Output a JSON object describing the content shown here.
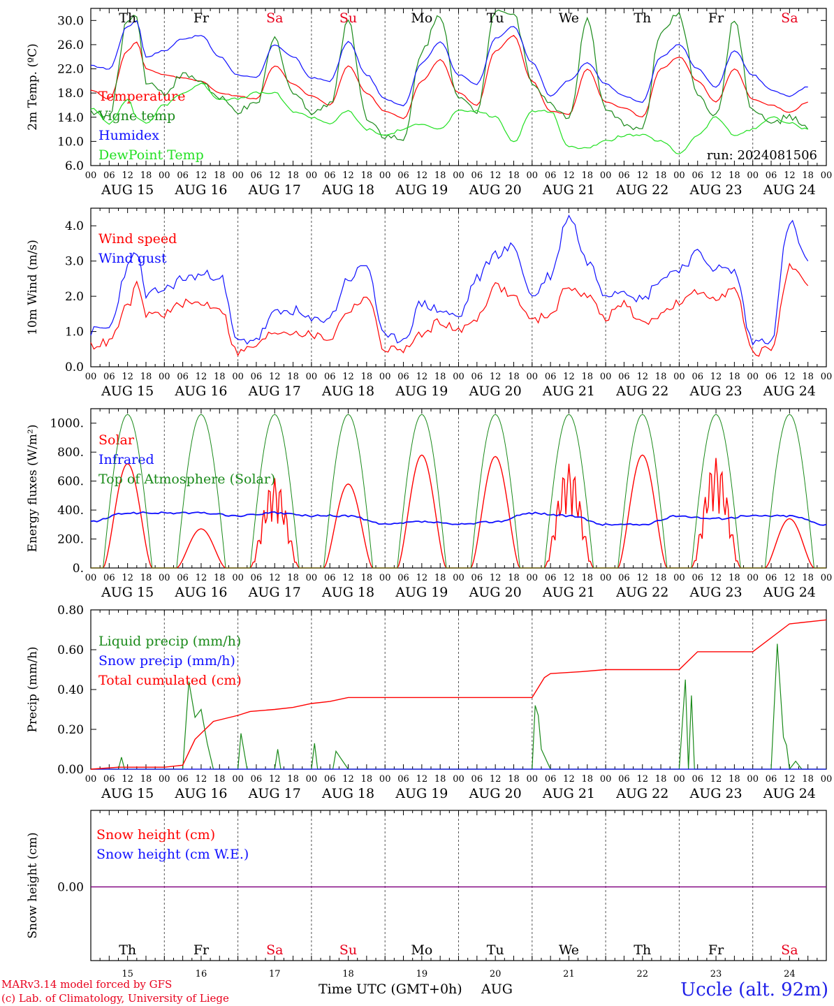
{
  "colors": {
    "red": "#ff0000",
    "dark_green": "#1a8a1a",
    "blue": "#1010ff",
    "light_green": "#22e022",
    "purple": "#800080",
    "weekend": "#e8001c"
  },
  "days": [
    {
      "abbr": "Th",
      "num": "15",
      "label": "AUG 15",
      "weekend": false
    },
    {
      "abbr": "Fr",
      "num": "16",
      "label": "AUG 16",
      "weekend": false
    },
    {
      "abbr": "Sa",
      "num": "17",
      "label": "AUG 17",
      "weekend": true
    },
    {
      "abbr": "Su",
      "num": "18",
      "label": "AUG 18",
      "weekend": true
    },
    {
      "abbr": "Mo",
      "num": "19",
      "label": "AUG 19",
      "weekend": false
    },
    {
      "abbr": "Tu",
      "num": "20",
      "label": "AUG 20",
      "weekend": false
    },
    {
      "abbr": "We",
      "num": "21",
      "label": "AUG 21",
      "weekend": false
    },
    {
      "abbr": "Th",
      "num": "22",
      "label": "AUG 22",
      "weekend": false
    },
    {
      "abbr": "Fr",
      "num": "23",
      "label": "AUG 23",
      "weekend": false
    },
    {
      "abbr": "Sa",
      "num": "24",
      "label": "AUG 24",
      "weekend": true
    }
  ],
  "hour_ticks": [
    "00",
    "06",
    "12",
    "18"
  ],
  "run_label": "run: 2024081506",
  "x_title": "Time UTC (GMT+0h)",
  "x_month": "AUG",
  "footer": {
    "model": "MARv3.14 model forced by GFS",
    "credit": "(c) Lab. of Climatology, University of Liege",
    "station": "Uccle (alt. 92m)"
  },
  "chart_data": [
    {
      "type": "line",
      "ylabel": "2m Temp. (ºC)",
      "ylim": [
        6,
        32
      ],
      "yticks": [
        "6.0",
        "10.0",
        "14.0",
        "18.0",
        "22.0",
        "26.0",
        "30.0"
      ],
      "ytick_values": [
        6,
        10,
        14,
        18,
        22,
        26,
        30
      ],
      "x_unit": "hours since AUG 15 00 UTC",
      "series": [
        {
          "name": "Temperature",
          "color": "red",
          "x": [
            0,
            6,
            12,
            15,
            18,
            24,
            30,
            36,
            42,
            48,
            54,
            60,
            66,
            72,
            78,
            84,
            90,
            96,
            102,
            108,
            114,
            120,
            126,
            132,
            138,
            144,
            150,
            156,
            162,
            168,
            174,
            180,
            186,
            192,
            198,
            204,
            210,
            216,
            222,
            228,
            234
          ],
          "values": [
            18.5,
            17,
            25,
            26.5,
            22,
            21,
            20.5,
            20,
            18,
            17.5,
            17,
            22.5,
            19.5,
            17.5,
            16,
            22.5,
            18,
            15,
            13.8,
            20,
            23.5,
            18,
            16,
            25,
            27.5,
            20,
            15,
            14.5,
            22,
            16.5,
            15.5,
            14,
            22,
            24,
            20,
            16.5,
            22,
            17,
            16,
            14.8,
            16.5
          ]
        },
        {
          "name": "Vigne temp",
          "color": "dark_green",
          "x": [
            0,
            6,
            12,
            15,
            18,
            24,
            30,
            36,
            42,
            48,
            54,
            60,
            66,
            72,
            78,
            84,
            90,
            96,
            102,
            108,
            114,
            120,
            126,
            132,
            138,
            144,
            150,
            156,
            162,
            168,
            174,
            180,
            186,
            192,
            198,
            204,
            210,
            216,
            222,
            228,
            234
          ],
          "values": [
            15,
            14,
            30,
            31,
            20,
            18,
            21,
            20,
            17,
            15,
            16,
            27,
            18,
            15,
            16,
            30,
            14,
            11,
            10,
            25,
            31,
            17,
            15,
            32,
            31,
            20,
            16,
            14,
            30,
            15,
            13,
            12,
            28,
            31,
            18,
            14,
            30,
            15,
            13,
            14,
            12
          ]
        },
        {
          "name": "Humidex",
          "color": "blue",
          "x": [
            0,
            6,
            12,
            15,
            18,
            24,
            30,
            36,
            42,
            48,
            54,
            60,
            66,
            72,
            78,
            84,
            90,
            96,
            102,
            108,
            114,
            120,
            126,
            132,
            138,
            144,
            150,
            156,
            162,
            168,
            174,
            180,
            186,
            192,
            198,
            204,
            210,
            216,
            222,
            228,
            234
          ],
          "values": [
            22.5,
            22,
            29,
            30,
            24,
            25,
            27,
            27.5,
            24,
            21,
            20.5,
            26,
            24,
            20.5,
            20,
            26.5,
            21,
            17,
            16,
            23,
            26.5,
            21,
            19.5,
            27,
            29,
            23,
            17.5,
            20,
            23,
            19.5,
            17.5,
            16.5,
            24,
            26,
            22,
            19,
            25,
            21,
            18.5,
            17.5,
            19
          ]
        },
        {
          "name": "DewPoint Temp",
          "color": "light_green",
          "x": [
            0,
            6,
            12,
            15,
            18,
            24,
            30,
            36,
            42,
            48,
            54,
            60,
            66,
            72,
            78,
            84,
            90,
            96,
            102,
            108,
            114,
            120,
            126,
            132,
            138,
            144,
            150,
            156,
            162,
            168,
            174,
            180,
            186,
            192,
            198,
            204,
            210,
            216,
            222,
            228,
            234
          ],
          "values": [
            15.5,
            13,
            17,
            14,
            13,
            16,
            18,
            19.5,
            17,
            17,
            18,
            18,
            15,
            14,
            13,
            15,
            12,
            11,
            12,
            13,
            12,
            15,
            15,
            14,
            10,
            15,
            15,
            9,
            9,
            10,
            11,
            11,
            10,
            8,
            11,
            14,
            11,
            12,
            14,
            13,
            12
          ]
        }
      ]
    },
    {
      "type": "line",
      "ylabel": "10m Wind (m/s)",
      "ylim": [
        0,
        4.5
      ],
      "yticks": [
        "0.0",
        "1.0",
        "2.0",
        "3.0",
        "4.0"
      ],
      "ytick_values": [
        0,
        1,
        2,
        3,
        4
      ],
      "x_unit": "hours since AUG 15 00 UTC",
      "series": [
        {
          "name": "Wind speed",
          "color": "red",
          "x": [
            0,
            6,
            12,
            15,
            18,
            24,
            30,
            36,
            42,
            48,
            54,
            60,
            66,
            72,
            78,
            84,
            90,
            96,
            102,
            108,
            114,
            120,
            126,
            132,
            138,
            144,
            150,
            156,
            162,
            168,
            174,
            180,
            186,
            192,
            198,
            204,
            210,
            216,
            222,
            228,
            234
          ],
          "values": [
            0.6,
            0.7,
            1.7,
            2.3,
            1.5,
            1.5,
            1.8,
            1.8,
            1.7,
            0.4,
            0.6,
            1.0,
            1.0,
            0.9,
            0.8,
            1.6,
            2.0,
            0.5,
            0.5,
            0.9,
            1.3,
            1.0,
            1.4,
            2.3,
            2.0,
            1.3,
            1.5,
            2.3,
            2.0,
            1.4,
            1.8,
            1.2,
            1.5,
            1.8,
            2.1,
            2.0,
            2.2,
            0.4,
            0.5,
            2.8,
            2.3
          ]
        },
        {
          "name": "Wind gust",
          "color": "blue",
          "x": [
            0,
            6,
            12,
            15,
            18,
            24,
            30,
            36,
            42,
            48,
            54,
            60,
            66,
            72,
            78,
            84,
            90,
            96,
            102,
            108,
            114,
            120,
            126,
            132,
            138,
            144,
            150,
            156,
            162,
            168,
            174,
            180,
            186,
            192,
            198,
            204,
            210,
            216,
            222,
            228,
            234
          ],
          "values": [
            1.0,
            1.1,
            2.8,
            3.3,
            2.0,
            2.2,
            2.5,
            2.6,
            2.6,
            0.7,
            0.8,
            1.5,
            1.6,
            1.3,
            1.4,
            2.5,
            2.9,
            0.8,
            0.8,
            1.8,
            1.6,
            1.4,
            2.5,
            3.2,
            3.4,
            2.0,
            2.6,
            4.3,
            3.0,
            2.1,
            2.2,
            1.9,
            2.5,
            2.8,
            3.2,
            2.8,
            2.7,
            0.7,
            0.8,
            4.1,
            3.0
          ]
        }
      ]
    },
    {
      "type": "line",
      "ylabel": "Energy fluxes (W/m²)",
      "ylim": [
        0,
        1100
      ],
      "yticks": [
        "0.",
        "200.",
        "400.",
        "600.",
        "800.",
        "1000."
      ],
      "ytick_values": [
        0,
        200,
        400,
        600,
        800,
        1000
      ],
      "x_unit": "hours since AUG 15 00 UTC",
      "series": [
        {
          "name": "Solar",
          "color": "red",
          "peaks": [
            720,
            270,
            620,
            580,
            780,
            770,
            720,
            780,
            760,
            340
          ]
        },
        {
          "name": "Infrared",
          "color": "blue",
          "x": [
            0,
            12,
            24,
            36,
            48,
            60,
            72,
            84,
            96,
            108,
            120,
            132,
            144,
            156,
            168,
            180,
            192,
            204,
            216,
            228,
            240
          ],
          "values": [
            320,
            380,
            380,
            380,
            360,
            380,
            360,
            360,
            300,
            320,
            300,
            320,
            380,
            360,
            300,
            300,
            360,
            340,
            360,
            360,
            300
          ]
        },
        {
          "name": "Top of Atmosphere (Solar)",
          "color": "dark_green",
          "peak": 1060
        }
      ]
    },
    {
      "type": "line",
      "ylabel": "Precip (mm/h)",
      "ylim": [
        0,
        0.8
      ],
      "yticks": [
        "0.00",
        "0.20",
        "0.40",
        "0.60",
        "0.80"
      ],
      "ytick_values": [
        0,
        0.2,
        0.4,
        0.6,
        0.8
      ],
      "x_unit": "hours since AUG 15 00 UTC",
      "series": [
        {
          "name": "Liquid precip (mm/h)",
          "color": "dark_green",
          "x": [
            0,
            9,
            10,
            11,
            30,
            32,
            34,
            36,
            38,
            40,
            44,
            48,
            49,
            51,
            60,
            61,
            62,
            72,
            73,
            74,
            79,
            80,
            84,
            144,
            145,
            146,
            147,
            150,
            192,
            194,
            195,
            196,
            197,
            198,
            199,
            216,
            222,
            224,
            226,
            227,
            228,
            230,
            232,
            234,
            240
          ],
          "values": [
            0,
            0,
            0.06,
            0,
            0,
            0.44,
            0.26,
            0.3,
            0.13,
            0,
            0,
            0,
            0.18,
            0,
            0,
            0.1,
            0,
            0,
            0.13,
            0,
            0,
            0.09,
            0,
            0,
            0.32,
            0.27,
            0.1,
            0,
            0,
            0.45,
            0,
            0.37,
            0,
            0,
            0,
            0,
            0,
            0.63,
            0.16,
            0.12,
            0,
            0.04,
            0,
            0,
            0
          ]
        },
        {
          "name": "Snow precip (mm/h)",
          "color": "blue",
          "x": [
            0,
            240
          ],
          "values": [
            0,
            0
          ]
        },
        {
          "name": "Total cumulated (cm)",
          "color": "red",
          "x": [
            0,
            9,
            24,
            30,
            34,
            40,
            48,
            52,
            60,
            66,
            72,
            78,
            84,
            96,
            120,
            144,
            148,
            150,
            160,
            168,
            192,
            198,
            216,
            228,
            240
          ],
          "values": [
            0,
            0.01,
            0.01,
            0.02,
            0.15,
            0.24,
            0.27,
            0.29,
            0.3,
            0.31,
            0.33,
            0.34,
            0.36,
            0.36,
            0.36,
            0.36,
            0.46,
            0.48,
            0.49,
            0.5,
            0.5,
            0.59,
            0.59,
            0.73,
            0.75
          ]
        }
      ]
    },
    {
      "type": "line",
      "ylabel": "Snow height (cm)",
      "yticks": [
        "0.00"
      ],
      "ytick_values": [
        0
      ],
      "x_unit": "hours since AUG 15 00 UTC",
      "series": [
        {
          "name": "Snow height (cm)",
          "color": "red",
          "x": [
            0,
            240
          ],
          "values": [
            0,
            0
          ]
        },
        {
          "name": "Snow height (cm W.E.)",
          "color": "blue",
          "x": [
            0,
            240
          ],
          "values": [
            0,
            0
          ]
        }
      ]
    }
  ]
}
